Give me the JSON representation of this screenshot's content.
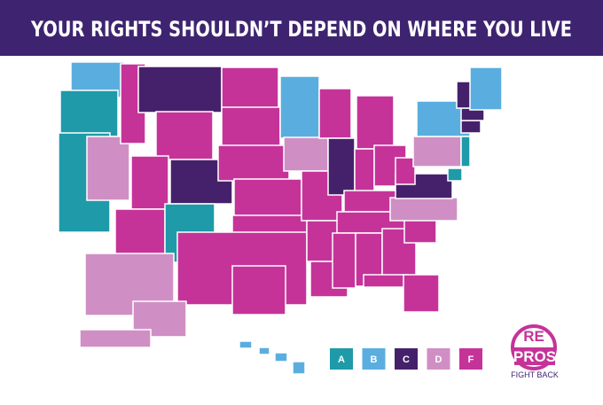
{
  "header": {
    "title": "YOUR RIGHTS SHOULDN’T DEPEND ON WHERE YOU LIVE"
  },
  "legend": [
    {
      "label": "A",
      "color": "#1e9aa8"
    },
    {
      "label": "B",
      "color": "#5aaedf"
    },
    {
      "label": "C",
      "color": "#46216b"
    },
    {
      "label": "D",
      "color": "#cf8fc4"
    },
    {
      "label": "F",
      "color": "#c53399"
    }
  ],
  "logo": {
    "re": "RE",
    "pros": "PROS",
    "tagline": "FIGHT BACK"
  }
}
